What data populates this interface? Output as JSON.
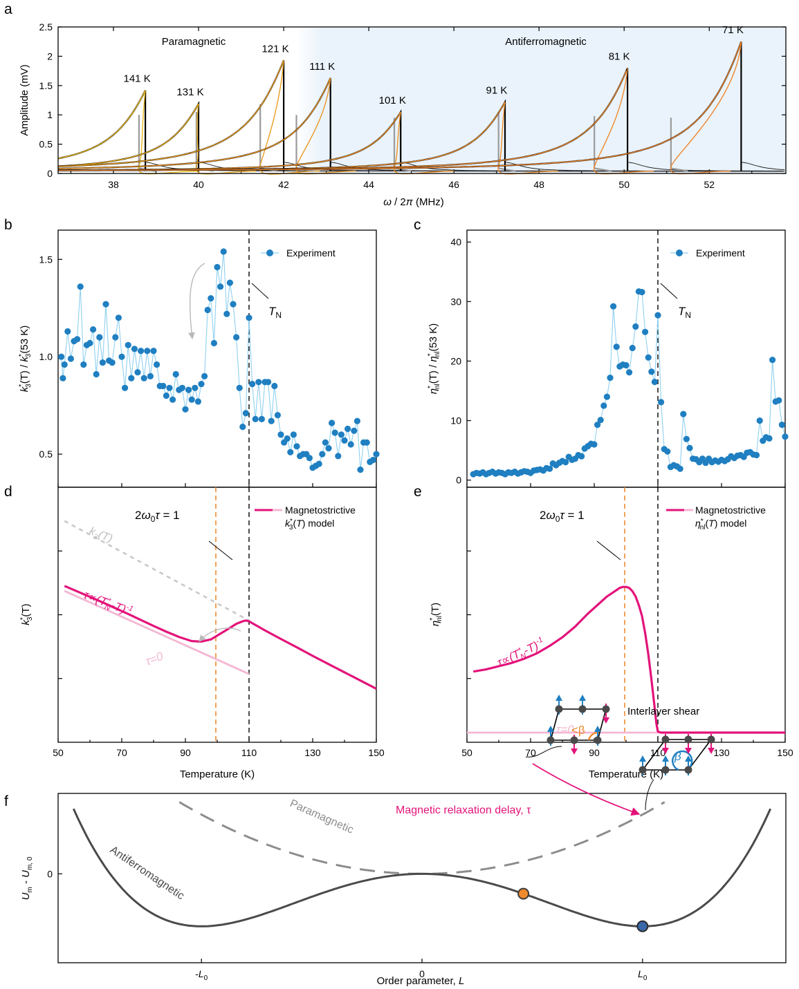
{
  "panel_labels": [
    "a",
    "b",
    "c",
    "d",
    "e",
    "f"
  ],
  "colors": {
    "experiment": "#1f7fc1",
    "experiment_line": "#8fd0f0",
    "model": "#e3137a",
    "model_tau0": "#f4b6d3",
    "orange_dashed": "#ef8a2c",
    "afm_shade": "#eaf3fb",
    "potential": "#4a4a4a",
    "paramagnetic_dashed": "#8c8c8c",
    "spin_up": "#1f7fc1",
    "spin_down": "#e3137a"
  },
  "chart_data": [
    {
      "panel": "a",
      "type": "line",
      "xlabel_html": "ω / 2π (MHz)",
      "ylabel": "Amplitude (mV)",
      "xlim": [
        36.7,
        53.8
      ],
      "ylim": [
        0,
        2.5
      ],
      "xticks": [
        "38",
        "40",
        "42",
        "44",
        "46",
        "48",
        "50",
        "52"
      ],
      "yticks": [
        "0",
        "0.5",
        "1",
        "1.5",
        "2",
        "2.5"
      ],
      "region_labels": [
        "Paramagnetic",
        "Antiferromagnetic"
      ],
      "afm_region_start": 43.5,
      "series": [
        {
          "label": "141 K",
          "peak_freq": 38.75,
          "peak_amp": 1.42,
          "knee_freq": 38.6,
          "knee_amp": 1.0,
          "fit_color": "#e6b619"
        },
        {
          "label": "131 K",
          "peak_freq": 40.0,
          "peak_amp": 1.19,
          "knee_freq": 39.95,
          "knee_amp": 1.05,
          "fit_color": "#e8ad1c"
        },
        {
          "label": "121 K",
          "peak_freq": 42.0,
          "peak_amp": 1.93,
          "knee_freq": 41.45,
          "knee_amp": 1.18,
          "fit_color": "#ea9f20"
        },
        {
          "label": "111 K",
          "peak_freq": 43.1,
          "peak_amp": 1.63,
          "knee_freq": 42.3,
          "knee_amp": 1.0,
          "fit_color": "#ec9524"
        },
        {
          "label": "101 K",
          "peak_freq": 44.75,
          "peak_amp": 1.05,
          "knee_freq": 44.6,
          "knee_amp": 0.95,
          "fit_color": "#ed9126"
        },
        {
          "label": "91 K",
          "peak_freq": 47.2,
          "peak_amp": 1.22,
          "knee_freq": 47.05,
          "knee_amp": 1.05,
          "fit_color": "#ee8c28"
        },
        {
          "label": "81 K",
          "peak_freq": 50.08,
          "peak_amp": 1.8,
          "knee_freq": 49.3,
          "knee_amp": 0.98,
          "fit_color": "#ef892a"
        },
        {
          "label": "71 K",
          "peak_freq": 52.75,
          "peak_amp": 2.25,
          "knee_freq": 51.1,
          "knee_amp": 0.95,
          "fit_color": "#ef852c"
        }
      ]
    },
    {
      "panel": "b",
      "type": "line",
      "xlim": [
        50,
        150
      ],
      "ylim": [
        0.33,
        1.65
      ],
      "yticks": [
        "0.5",
        "1.0",
        "1.5"
      ],
      "ytick_values": [
        0.5,
        1.0,
        1.5
      ],
      "ylabel_html": "k*3(T) / k*3(53 K)",
      "legend": "Experiment",
      "vline_label": "T_N",
      "x": [
        51,
        51.5,
        52,
        53,
        54,
        55,
        56,
        57,
        58,
        59,
        60,
        61,
        62,
        63,
        64,
        65,
        66,
        67,
        68,
        69,
        70,
        71,
        72,
        73,
        74,
        75,
        76,
        77,
        78,
        79,
        80,
        81,
        82,
        83,
        84,
        85,
        86,
        87,
        88,
        89,
        90,
        91,
        92,
        93,
        94,
        95,
        96,
        97,
        98,
        99,
        100,
        101,
        102,
        103,
        104,
        105,
        106,
        107,
        108,
        109,
        110,
        111,
        112,
        113,
        114,
        115,
        116,
        117,
        118,
        119,
        120,
        121,
        122,
        123,
        124,
        125,
        126,
        127,
        128,
        129,
        130,
        131,
        132,
        133,
        134,
        135,
        136,
        137,
        138,
        139,
        140,
        141,
        142,
        143,
        144,
        145,
        146,
        147,
        148,
        149,
        150
      ],
      "values": [
        1.0,
        0.89,
        0.96,
        1.13,
        0.99,
        1.08,
        1.09,
        1.36,
        0.96,
        1.06,
        1.07,
        1.14,
        0.91,
        1.1,
        0.97,
        1.27,
        0.98,
        0.97,
        1.1,
        1.2,
        1.0,
        0.84,
        1.06,
        0.89,
        1.04,
        0.92,
        1.03,
        0.89,
        1.03,
        0.9,
        1.03,
        0.96,
        0.85,
        0.85,
        0.8,
        0.84,
        0.78,
        0.91,
        0.83,
        0.84,
        0.73,
        0.83,
        0.78,
        0.84,
        0.77,
        0.86,
        0.9,
        1.24,
        1.3,
        1.07,
        1.46,
        1.36,
        1.54,
        1.22,
        1.38,
        1.27,
        1.1,
        0.84,
        0.64,
        0.71,
        1.2,
        0.86,
        0.68,
        0.87,
        0.68,
        0.87,
        0.87,
        0.67,
        0.85,
        0.7,
        0.6,
        0.56,
        0.58,
        0.51,
        0.6,
        0.54,
        0.49,
        0.5,
        0.5,
        0.48,
        0.43,
        0.44,
        0.45,
        0.5,
        0.56,
        0.53,
        0.66,
        0.61,
        0.49,
        0.6,
        0.57,
        0.63,
        0.55,
        0.62,
        0.67,
        0.42,
        0.56,
        0.56,
        0.46,
        0.47,
        0.5
      ]
    },
    {
      "panel": "c",
      "type": "line",
      "xlim": [
        50,
        150
      ],
      "ylim": [
        -1.2,
        42
      ],
      "yticks": [
        "0",
        "10",
        "20",
        "30",
        "40"
      ],
      "ytick_values": [
        0,
        10,
        20,
        30,
        40
      ],
      "ylabel_html": "η*nl(T) / η*nl(53 K)",
      "legend": "Experiment",
      "vline_label": "T_N",
      "x": [
        52,
        53,
        54,
        55,
        56,
        57,
        58,
        59,
        60,
        61,
        62,
        63,
        64,
        65,
        66,
        67,
        68,
        69,
        70,
        71,
        72,
        73,
        74,
        75,
        76,
        77,
        78,
        79,
        80,
        81,
        82,
        83,
        84,
        85,
        86,
        87,
        88,
        89,
        90,
        91,
        92,
        93,
        94,
        95,
        96,
        97,
        98,
        99,
        100,
        101,
        102,
        103,
        104,
        105,
        106,
        107,
        108,
        109,
        110,
        111,
        112,
        113,
        114,
        115,
        116,
        117,
        118,
        119,
        120,
        121,
        122,
        123,
        124,
        125,
        126,
        127,
        128,
        129,
        130,
        131,
        132,
        133,
        134,
        135,
        136,
        137,
        138,
        139,
        140,
        141,
        142,
        143,
        144,
        145,
        146,
        147,
        148,
        149,
        150
      ],
      "values": [
        1.0,
        1.2,
        1.1,
        1.3,
        1.0,
        1.2,
        1.4,
        1.1,
        1.3,
        1.2,
        1.0,
        1.3,
        1.2,
        1.4,
        1.1,
        1.3,
        1.5,
        1.4,
        1.2,
        1.6,
        1.7,
        1.8,
        1.6,
        2.0,
        1.9,
        2.8,
        2.5,
        2.9,
        3.2,
        3.0,
        3.9,
        3.4,
        3.6,
        4.2,
        4.0,
        5.3,
        5.7,
        6.1,
        6.0,
        9.3,
        10.1,
        12.5,
        14.0,
        17.2,
        29.2,
        22.4,
        19.1,
        19.4,
        19.3,
        18.1,
        22.2,
        25.8,
        31.7,
        31.6,
        24.9,
        20.6,
        18.2,
        16.5,
        27.7,
        13.1,
        5.2,
        4.8,
        2.2,
        2.5,
        2.3,
        1.9,
        11.1,
        6.9,
        5.4,
        3.6,
        3.5,
        3.0,
        3.6,
        2.9,
        3.6,
        3.0,
        3.3,
        3.1,
        3.4,
        3.2,
        3.5,
        4.0,
        3.7,
        4.1,
        4.2,
        3.9,
        4.6,
        4.7,
        4.3,
        4.2,
        10.0,
        6.6,
        7.2,
        7.0,
        20.2,
        13.2,
        13.4,
        9.3,
        7.3
      ]
    },
    {
      "panel": "d",
      "type": "line",
      "xlim": [
        50,
        150
      ],
      "xticks": [
        "50",
        "70",
        "90",
        "110",
        "130",
        "150"
      ],
      "xlabel": "Temperature (K)",
      "ylabel_html": "k*3(T)",
      "legend_line1": "Magnetostrictive",
      "legend_line2_html": "k*3(T) model",
      "annotation": "2ω0τ = 1",
      "dashed_curve_label": "k3(T)",
      "model_curve_label": "τ∝(T*N-T)-1",
      "tau0_label": "τ=0",
      "T_N": 110,
      "T_orange": 99.5,
      "model": {
        "x": [
          52,
          56,
          60,
          64,
          68,
          72,
          76,
          80,
          84,
          88,
          92,
          95,
          98,
          101,
          104,
          106,
          108,
          109,
          110,
          115,
          120,
          125,
          130,
          135,
          140,
          145,
          150
        ],
        "values": [
          0.6,
          0.567,
          0.534,
          0.5,
          0.465,
          0.43,
          0.393,
          0.357,
          0.322,
          0.29,
          0.265,
          0.262,
          0.275,
          0.31,
          0.345,
          0.37,
          0.385,
          0.39,
          0.385,
          0.33,
          0.278,
          0.227,
          0.175,
          0.125,
          0.075,
          0.025,
          -0.025
        ]
      },
      "tau0": {
        "x": [
          52,
          110
        ],
        "values": [
          0.57,
          0.065
        ]
      },
      "bare_k3": {
        "x": [
          52,
          110
        ],
        "values": [
          0.995,
          0.39
        ]
      },
      "ylim": [
        -0.35,
        1.2
      ]
    },
    {
      "panel": "e",
      "type": "line",
      "xlim": [
        50,
        150
      ],
      "xticks": [
        "50",
        "70",
        "90",
        "110",
        "130",
        "150"
      ],
      "xlabel": "Temperature (K)",
      "ylabel_html": "η*nl(T)",
      "legend_line1": "Magnetostrictive",
      "legend_line2_html": "η*nl(T) model",
      "annotation": "2ω0τ = 1",
      "model_curve_label": "τ∝(T*N-T)-1",
      "tau0_label": "τ=0",
      "T_N": 110,
      "T_orange": 99.5,
      "model": {
        "x": [
          52,
          56,
          60,
          64,
          68,
          72,
          76,
          80,
          84,
          88,
          91,
          94,
          96,
          98,
          99,
          100,
          101,
          102,
          103,
          104,
          105,
          106,
          107,
          108,
          109,
          109.5,
          110,
          111,
          115,
          120,
          130,
          140,
          150
        ],
        "values": [
          0.29,
          0.3,
          0.315,
          0.33,
          0.35,
          0.375,
          0.41,
          0.45,
          0.5,
          0.56,
          0.6,
          0.64,
          0.66,
          0.68,
          0.685,
          0.685,
          0.68,
          0.665,
          0.64,
          0.6,
          0.55,
          0.47,
          0.37,
          0.25,
          0.12,
          0.05,
          0.01,
          0.005,
          0.005,
          0.005,
          0.005,
          0.005,
          0.005
        ]
      },
      "tau0": {
        "x": [
          50,
          150
        ],
        "values": [
          0.005,
          0.005
        ]
      },
      "ylim": [
        -0.04,
        1.15
      ]
    },
    {
      "panel": "f",
      "type": "line",
      "xlabel_html": "Order parameter, L",
      "ylabel_html": "Um - Um, 0",
      "xlim": [
        -1.65,
        1.65
      ],
      "ylim": [
        -1.05,
        0.95
      ],
      "xticks_html": [
        "-L0",
        "0",
        "L0"
      ],
      "xtick_values": [
        -1,
        0,
        1
      ],
      "yticks": [
        "0"
      ],
      "antiferromagnetic_label": "Antiferromagnetic",
      "paramagnetic_label": "Paramagnetic",
      "relaxation_label": "Magnetic relaxation delay, τ",
      "shear_label": "Interlayer shear",
      "angle_label_small": "<β",
      "angle_label": "β",
      "orange_state_L": 0.46,
      "final_state_L": 1.0
    }
  ]
}
